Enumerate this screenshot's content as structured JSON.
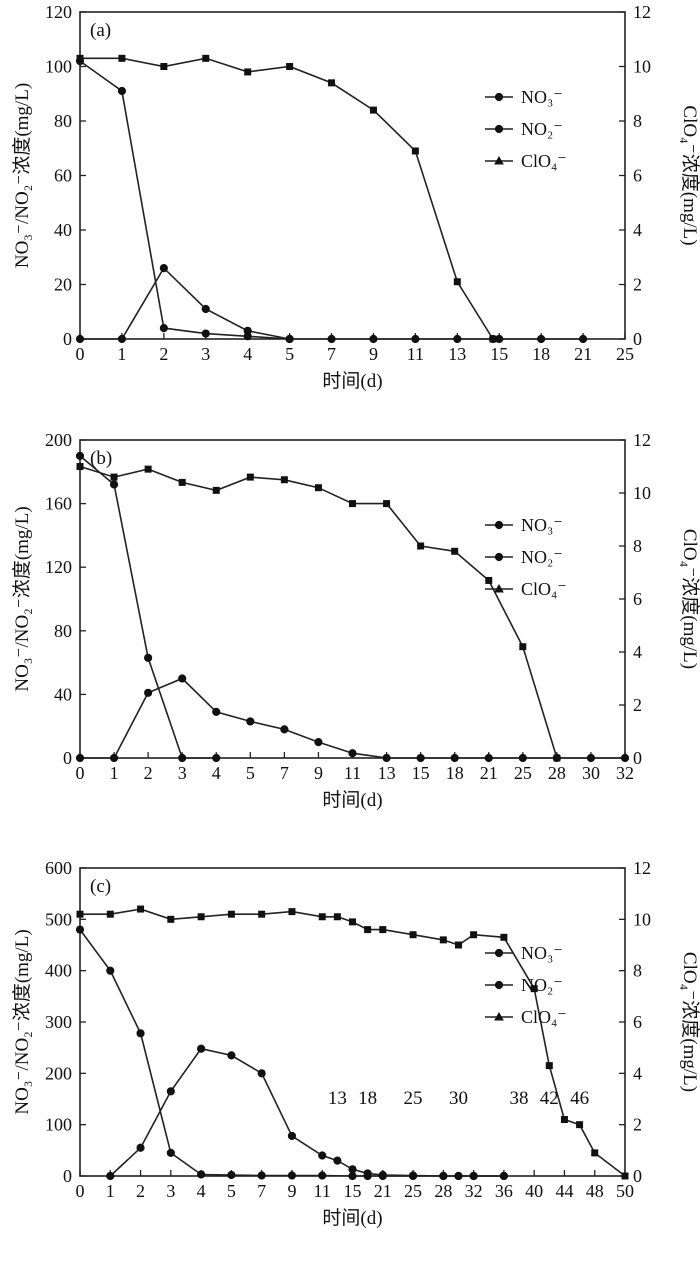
{
  "chart_data": [
    {
      "type": "line",
      "panel_label": "(a)",
      "xlabel": "时间(d)",
      "ylabel_left": "NO₃⁻/NO₂⁻浓度(mg/L)",
      "ylabel_right": "ClO₄⁻浓度(mg/L)",
      "x_ticks": [
        "0",
        "1",
        "2",
        "3",
        "4",
        "5",
        "7",
        "9",
        "11",
        "13",
        "15",
        "18",
        "21",
        "25"
      ],
      "y_left_ticks": [
        "0",
        "20",
        "40",
        "60",
        "80",
        "100",
        "120"
      ],
      "y_right_ticks": [
        "0",
        "2",
        "4",
        "6",
        "8",
        "10",
        "12"
      ],
      "ylim_left": [
        0,
        120
      ],
      "ylim_right": [
        0,
        12
      ],
      "legend": [
        "NO₃⁻",
        "NO₂⁻",
        "ClO₄⁻"
      ],
      "legend_position": "right",
      "grid": false,
      "series": [
        {
          "name": "NO₃⁻",
          "marker": "circle",
          "axis": "left",
          "x": [
            0,
            1,
            2,
            3,
            4,
            5
          ],
          "y": [
            102,
            91,
            4,
            2,
            1,
            0
          ]
        },
        {
          "name": "NO₂⁻",
          "marker": "circle",
          "axis": "left",
          "x": [
            0,
            1,
            2,
            3,
            4,
            5,
            7,
            9,
            11,
            13,
            14.7,
            15,
            18,
            21
          ],
          "y": [
            0,
            0,
            26,
            11,
            3,
            0,
            0,
            0,
            0,
            0,
            0,
            0,
            0,
            0
          ]
        },
        {
          "name": "ClO₄⁻",
          "marker": "square",
          "axis": "right",
          "x": [
            0,
            1,
            2,
            3,
            4,
            5,
            7,
            9,
            11,
            13,
            14.7
          ],
          "y": [
            10.3,
            10.3,
            10.0,
            10.3,
            9.8,
            10.0,
            9.4,
            8.4,
            6.9,
            2.1,
            0
          ]
        }
      ]
    },
    {
      "type": "line",
      "panel_label": "(b)",
      "xlabel": "时间(d)",
      "ylabel_left": "NO₃⁻/NO₂⁻浓度(mg/L)",
      "ylabel_right": "ClO₄⁻浓度(mg/L)",
      "x_ticks": [
        "0",
        "1",
        "2",
        "3",
        "4",
        "5",
        "7",
        "9",
        "11",
        "13",
        "15",
        "18",
        "21",
        "25",
        "28",
        "30",
        "32"
      ],
      "y_left_ticks": [
        "0",
        "40",
        "80",
        "120",
        "160",
        "200"
      ],
      "y_right_ticks": [
        "0",
        "2",
        "4",
        "6",
        "8",
        "10",
        "12"
      ],
      "ylim_left": [
        0,
        200
      ],
      "ylim_right": [
        0,
        12
      ],
      "legend": [
        "NO₃⁻",
        "NO₂⁻",
        "ClO₄⁻"
      ],
      "legend_position": "right",
      "grid": false,
      "series": [
        {
          "name": "NO₃⁻",
          "marker": "circle",
          "axis": "left",
          "x": [
            0,
            1,
            2,
            3,
            4
          ],
          "y": [
            190,
            172,
            63,
            0,
            0
          ]
        },
        {
          "name": "NO₂⁻",
          "marker": "circle",
          "axis": "left",
          "x": [
            0,
            1,
            2,
            3,
            4,
            5,
            7,
            9,
            11,
            13,
            15,
            18,
            21,
            25,
            28,
            30,
            32
          ],
          "y": [
            0,
            0,
            41,
            50,
            29,
            23,
            18,
            10,
            3,
            0,
            0,
            0,
            0,
            0,
            0,
            0,
            0
          ]
        },
        {
          "name": "ClO₄⁻",
          "marker": "square",
          "axis": "right",
          "x": [
            0,
            1,
            2,
            3,
            4,
            5,
            7,
            9,
            11,
            13,
            15,
            18,
            21,
            25,
            28
          ],
          "y": [
            11.0,
            10.6,
            10.9,
            10.4,
            10.1,
            10.6,
            10.5,
            10.2,
            9.6,
            9.6,
            8.0,
            7.8,
            6.7,
            4.2,
            0
          ]
        }
      ]
    },
    {
      "type": "line",
      "panel_label": "(c)",
      "xlabel": "时间(d)",
      "ylabel_left": "NO₃⁻/NO₂⁻浓度(mg/L)",
      "ylabel_right": "ClO₄⁻浓度(mg/L)",
      "x_ticks": [
        "0",
        "1",
        "2",
        "3",
        "4",
        "5",
        "7",
        "9",
        "11",
        "15",
        "21",
        "25",
        "28",
        "32",
        "36",
        "40",
        "44",
        "48",
        "50"
      ],
      "y_left_ticks": [
        "0",
        "100",
        "200",
        "300",
        "400",
        "500",
        "600"
      ],
      "y_right_ticks": [
        "0",
        "2",
        "4",
        "6",
        "8",
        "10",
        "12"
      ],
      "ylim_left": [
        0,
        600
      ],
      "ylim_right": [
        0,
        12
      ],
      "legend": [
        "NO₃⁻",
        "NO₂⁻",
        "ClO₄⁻"
      ],
      "legend_position": "right",
      "grid": false,
      "annotations": [
        {
          "text": "13",
          "x": 13
        },
        {
          "text": "18",
          "x": 18
        },
        {
          "text": "25",
          "x": 25
        },
        {
          "text": "30",
          "x": 30
        },
        {
          "text": "38",
          "x": 38
        },
        {
          "text": "42",
          "x": 42
        },
        {
          "text": "46",
          "x": 46
        }
      ],
      "series": [
        {
          "name": "NO₃⁻",
          "marker": "circle",
          "axis": "left",
          "x": [
            0,
            1,
            2,
            3,
            4,
            5,
            7,
            9,
            11,
            15,
            18,
            21,
            25,
            28,
            30,
            32,
            36
          ],
          "y": [
            480,
            400,
            278,
            45,
            3,
            2,
            1,
            1,
            1,
            0,
            0,
            0,
            0,
            0,
            0,
            0,
            0
          ]
        },
        {
          "name": "NO₂⁻",
          "marker": "circle",
          "axis": "left",
          "x": [
            1,
            2,
            3,
            4,
            5,
            7,
            9,
            11,
            13,
            15,
            18,
            21,
            25,
            28,
            30,
            32,
            36
          ],
          "y": [
            0,
            55,
            165,
            248,
            235,
            200,
            78,
            40,
            30,
            13,
            5,
            2,
            1,
            0,
            0,
            0,
            0
          ]
        },
        {
          "name": "ClO₄⁻",
          "marker": "square",
          "axis": "right",
          "x": [
            0,
            1,
            2,
            3,
            4,
            5,
            7,
            9,
            11,
            13,
            15,
            18,
            21,
            25,
            28,
            30,
            32,
            36,
            40,
            42,
            44,
            46,
            48,
            50
          ],
          "y": [
            10.2,
            10.2,
            10.4,
            10.0,
            10.1,
            10.2,
            10.2,
            10.3,
            10.1,
            10.1,
            9.9,
            9.6,
            9.6,
            9.4,
            9.2,
            9.0,
            9.4,
            9.3,
            7.3,
            4.3,
            2.2,
            2.0,
            0.9,
            0
          ]
        }
      ]
    }
  ]
}
